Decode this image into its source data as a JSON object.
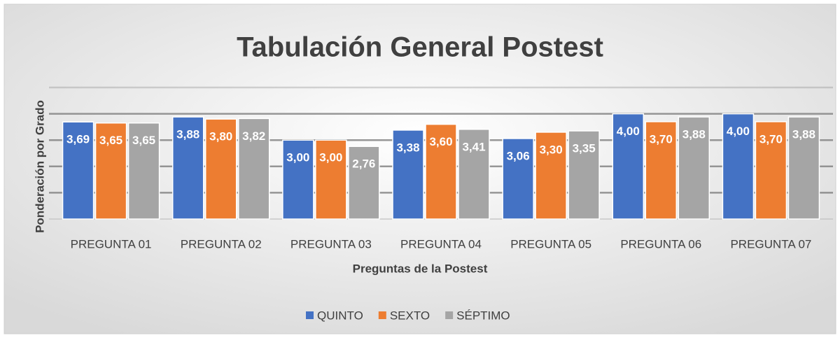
{
  "chart_data": {
    "type": "bar",
    "title": "Tabulación General Postest",
    "x_label": "Preguntas de la Postest",
    "y_label": "Ponderación por Grado",
    "categories": [
      "PREGUNTA 01",
      "PREGUNTA 02",
      "PREGUNTA 03",
      "PREGUNTA 04",
      "PREGUNTA 05",
      "PREGUNTA 06",
      "PREGUNTA 07"
    ],
    "series": [
      {
        "name": "QUINTO",
        "color": "#4472c4",
        "values": [
          3.69,
          3.88,
          3.0,
          3.38,
          3.06,
          4.0,
          4.0
        ],
        "value_labels": [
          "3,69",
          "3,88",
          "3,00",
          "3,38",
          "3,06",
          "4,00",
          "4,00"
        ]
      },
      {
        "name": "SEXTO",
        "color": "#ed7d31",
        "values": [
          3.65,
          3.8,
          3.0,
          3.6,
          3.3,
          3.7,
          3.7
        ],
        "value_labels": [
          "3,65",
          "3,80",
          "3,00",
          "3,60",
          "3,30",
          "3,70",
          "3,70"
        ]
      },
      {
        "name": "SÉPTIMO",
        "color": "#a5a5a5",
        "values": [
          3.65,
          3.82,
          2.76,
          3.41,
          3.35,
          3.88,
          3.88
        ],
        "value_labels": [
          "3,65",
          "3,82",
          "2,76",
          "3,41",
          "3,35",
          "3,88",
          "3,88"
        ]
      }
    ],
    "ylim": [
      0,
      5
    ],
    "yticks": [
      0,
      1,
      2,
      3,
      4,
      5
    ],
    "grid": true,
    "legend": "bottom"
  }
}
